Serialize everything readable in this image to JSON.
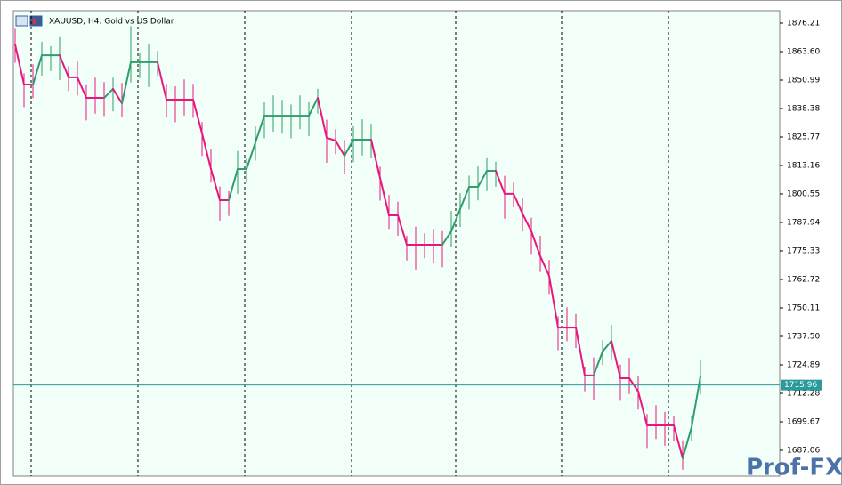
{
  "chart_data": {
    "type": "ohlc",
    "title": "XAUUSD, H4:  Gold vs US Dollar",
    "watermark": "Prof-FX",
    "current_price": 1715.96,
    "ylim": [
      1675.63,
      1881.73
    ],
    "yticks": [
      1876.21,
      {
        "value": 1863.6,
        "label": "1863.60"
      },
      1850.99,
      1838.38,
      1825.77,
      1813.16,
      1800.55,
      1787.94,
      1775.33,
      1762.72,
      1750.11,
      {
        "value": 1737.5,
        "label": "1737.50"
      },
      1724.89,
      1712.28,
      1699.67,
      1687.06
    ],
    "colors": {
      "up": "#2e9e6a",
      "down": "#e8177d",
      "price_line": "#2a9a9a"
    },
    "high": [
      1873.7,
      1854.0,
      1858.0,
      1868.0,
      1866.0,
      1870.0,
      1857.2,
      1859.2,
      1849.1,
      1852.1,
      1850.1,
      1852.1,
      1849.7,
      1874.9,
      1862.9,
      1866.9,
      1863.9,
      1849.3,
      1848.3,
      1851.3,
      1849.3,
      1832.4,
      1820.6,
      1803.8,
      1801.8,
      1819.6,
      1816.6,
      1830.4,
      1841.2,
      1844.2,
      1842.2,
      1840.2,
      1844.2,
      1841.2,
      1847.1,
      1833.4,
      1829.2,
      1824.5,
      1830.6,
      1833.6,
      1831.6,
      1812.6,
      1800.1,
      1797.1,
      1782.1,
      1786.1,
      1783.1,
      1785.1,
      1784.1,
      1793.0,
      1800.9,
      1808.7,
      1812.7,
      1816.8,
      1814.8,
      1808.6,
      1805.6,
      1798.9,
      1790.0,
      1782.0,
      1771.3,
      1746.4,
      1750.4,
      1747.4,
      1724.2,
      1728.2,
      1735.8,
      1742.5,
      1725.0,
      1728.0,
      1720.1,
      1703.1,
      1707.1,
      1704.1,
      1702.1,
      1691.5,
      1702.3,
      1726.8
    ],
    "low": [
      1858.7,
      1839.0,
      1843.0,
      1853.0,
      1855.0,
      1851.0,
      1846.2,
      1844.2,
      1833.1,
      1836.1,
      1835.1,
      1837.1,
      1834.7,
      1849.9,
      1851.9,
      1847.9,
      1852.9,
      1834.3,
      1832.3,
      1835.3,
      1834.3,
      1817.4,
      1805.6,
      1788.8,
      1790.8,
      1800.6,
      1805.6,
      1815.4,
      1825.2,
      1828.2,
      1827.2,
      1825.2,
      1829.2,
      1826.2,
      1836.1,
      1814.4,
      1818.2,
      1809.5,
      1814.6,
      1817.6,
      1816.6,
      1797.6,
      1785.1,
      1782.1,
      1771.1,
      1767.1,
      1772.1,
      1770.1,
      1768.1,
      1777.0,
      1785.9,
      1793.7,
      1797.7,
      1801.8,
      1803.8,
      1789.6,
      1794.6,
      1783.9,
      1774.0,
      1766.0,
      1756.3,
      1731.4,
      1735.4,
      1732.4,
      1713.2,
      1709.2,
      1724.8,
      1727.5,
      1709.0,
      1712.0,
      1705.1,
      1688.1,
      1692.1,
      1689.1,
      1691.1,
      1678.5,
      1691.3,
      1711.8
    ],
    "step": [
      1866.7,
      1849.0,
      1849.0,
      1862.0,
      1862.0,
      1862.0,
      1852.2,
      1852.2,
      1843.1,
      1843.1,
      1843.1,
      1847.1,
      1840.7,
      1858.9,
      1858.9,
      1858.9,
      1858.9,
      1842.3,
      1842.3,
      1842.3,
      1842.3,
      1827.4,
      1811.6,
      1797.8,
      1797.8,
      1811.6,
      1811.6,
      1823.4,
      1835.2,
      1835.2,
      1835.2,
      1835.2,
      1835.2,
      1835.2,
      1843.1,
      1825.4,
      1824.2,
      1817.5,
      1824.6,
      1824.6,
      1824.6,
      1807.6,
      1791.1,
      1791.1,
      1778.1,
      1778.1,
      1778.1,
      1778.1,
      1778.1,
      1784.0,
      1793.9,
      1803.7,
      1803.7,
      1810.8,
      1810.8,
      1800.6,
      1800.6,
      1791.9,
      1784.0,
      1773.0,
      1764.3,
      1741.4,
      1741.4,
      1741.4,
      1720.2,
      1720.2,
      1730.8,
      1735.5,
      1719.0,
      1719.0,
      1713.1,
      1698.1,
      1698.1,
      1698.1,
      1698.1,
      1683.5,
      1697.3,
      1719.8
    ]
  }
}
